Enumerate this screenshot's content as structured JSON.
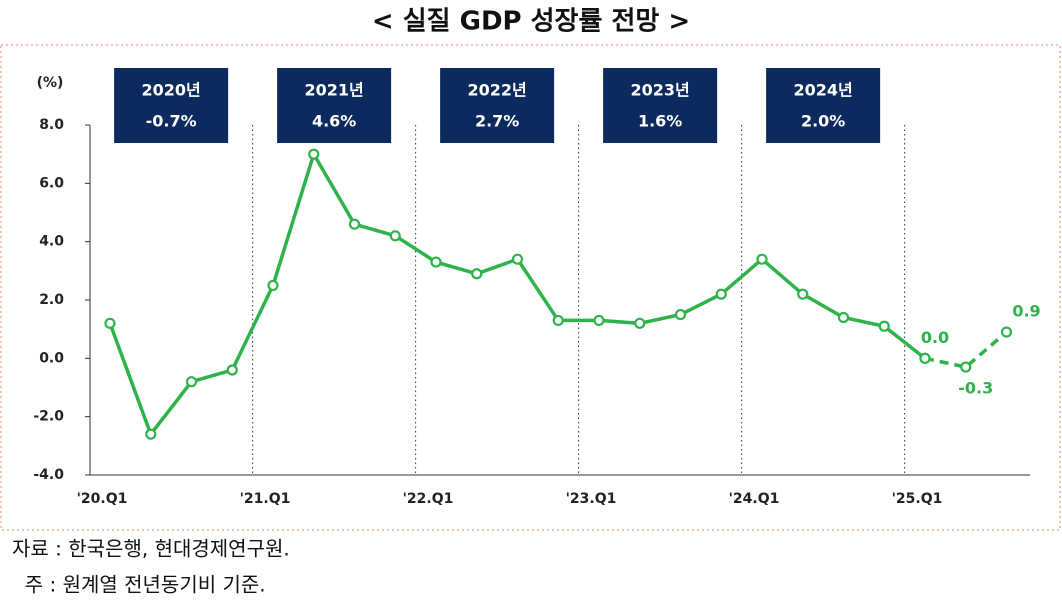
{
  "chart_data": {
    "type": "line",
    "title": "< 실질 GDP 성장률 전망 >",
    "y_unit": "(%)",
    "categories": [
      "'20.Q1",
      null,
      null,
      null,
      "'21.Q1",
      null,
      null,
      null,
      "'22.Q1",
      null,
      null,
      null,
      "'23.Q1",
      null,
      null,
      null,
      "'24.Q1",
      null,
      null,
      null,
      "'25.Q1",
      null,
      null
    ],
    "series": [
      {
        "color": "#2eb34b",
        "style": "solid",
        "values": [
          1.2,
          -2.6,
          -0.8,
          -0.4,
          2.5,
          7.0,
          4.6,
          4.2,
          3.3,
          2.9,
          3.4,
          1.3,
          1.3,
          1.2,
          1.5,
          2.2,
          3.4,
          2.2,
          1.4,
          1.1,
          0.0,
          null,
          null
        ]
      },
      {
        "color": "#2eb34b",
        "style": "dashed",
        "values": [
          null,
          null,
          null,
          null,
          null,
          null,
          null,
          null,
          null,
          null,
          null,
          null,
          null,
          null,
          null,
          null,
          null,
          null,
          null,
          null,
          0.0,
          -0.3,
          0.9
        ],
        "value_labels": [
          null,
          null,
          null,
          null,
          null,
          null,
          null,
          null,
          null,
          null,
          null,
          null,
          null,
          null,
          null,
          null,
          null,
          null,
          null,
          null,
          "0.0",
          "-0.3",
          "0.9"
        ]
      }
    ],
    "ylim": [
      -4,
      8
    ],
    "yticks": [
      {
        "value": -4,
        "label": "-4.0"
      },
      {
        "value": -2,
        "label": "-2.0"
      },
      {
        "value": 0,
        "label": "0.0"
      },
      {
        "value": 2,
        "label": "2.0"
      },
      {
        "value": 4,
        "label": "4.0"
      },
      {
        "value": 6,
        "label": "6.0"
      },
      {
        "value": 8,
        "label": "8.0"
      }
    ],
    "year_boxes": [
      {
        "year": "2020년",
        "growth": "-0.7%"
      },
      {
        "year": "2021년",
        "growth": "4.6%"
      },
      {
        "year": "2022년",
        "growth": "2.7%"
      },
      {
        "year": "2023년",
        "growth": "1.6%"
      },
      {
        "year": "2024년",
        "growth": "2.0%"
      }
    ],
    "notes": [
      "자료 : 한국은행, 현대경제연구원.",
      "  주 : 원계열 전년동기비 기준."
    ]
  }
}
